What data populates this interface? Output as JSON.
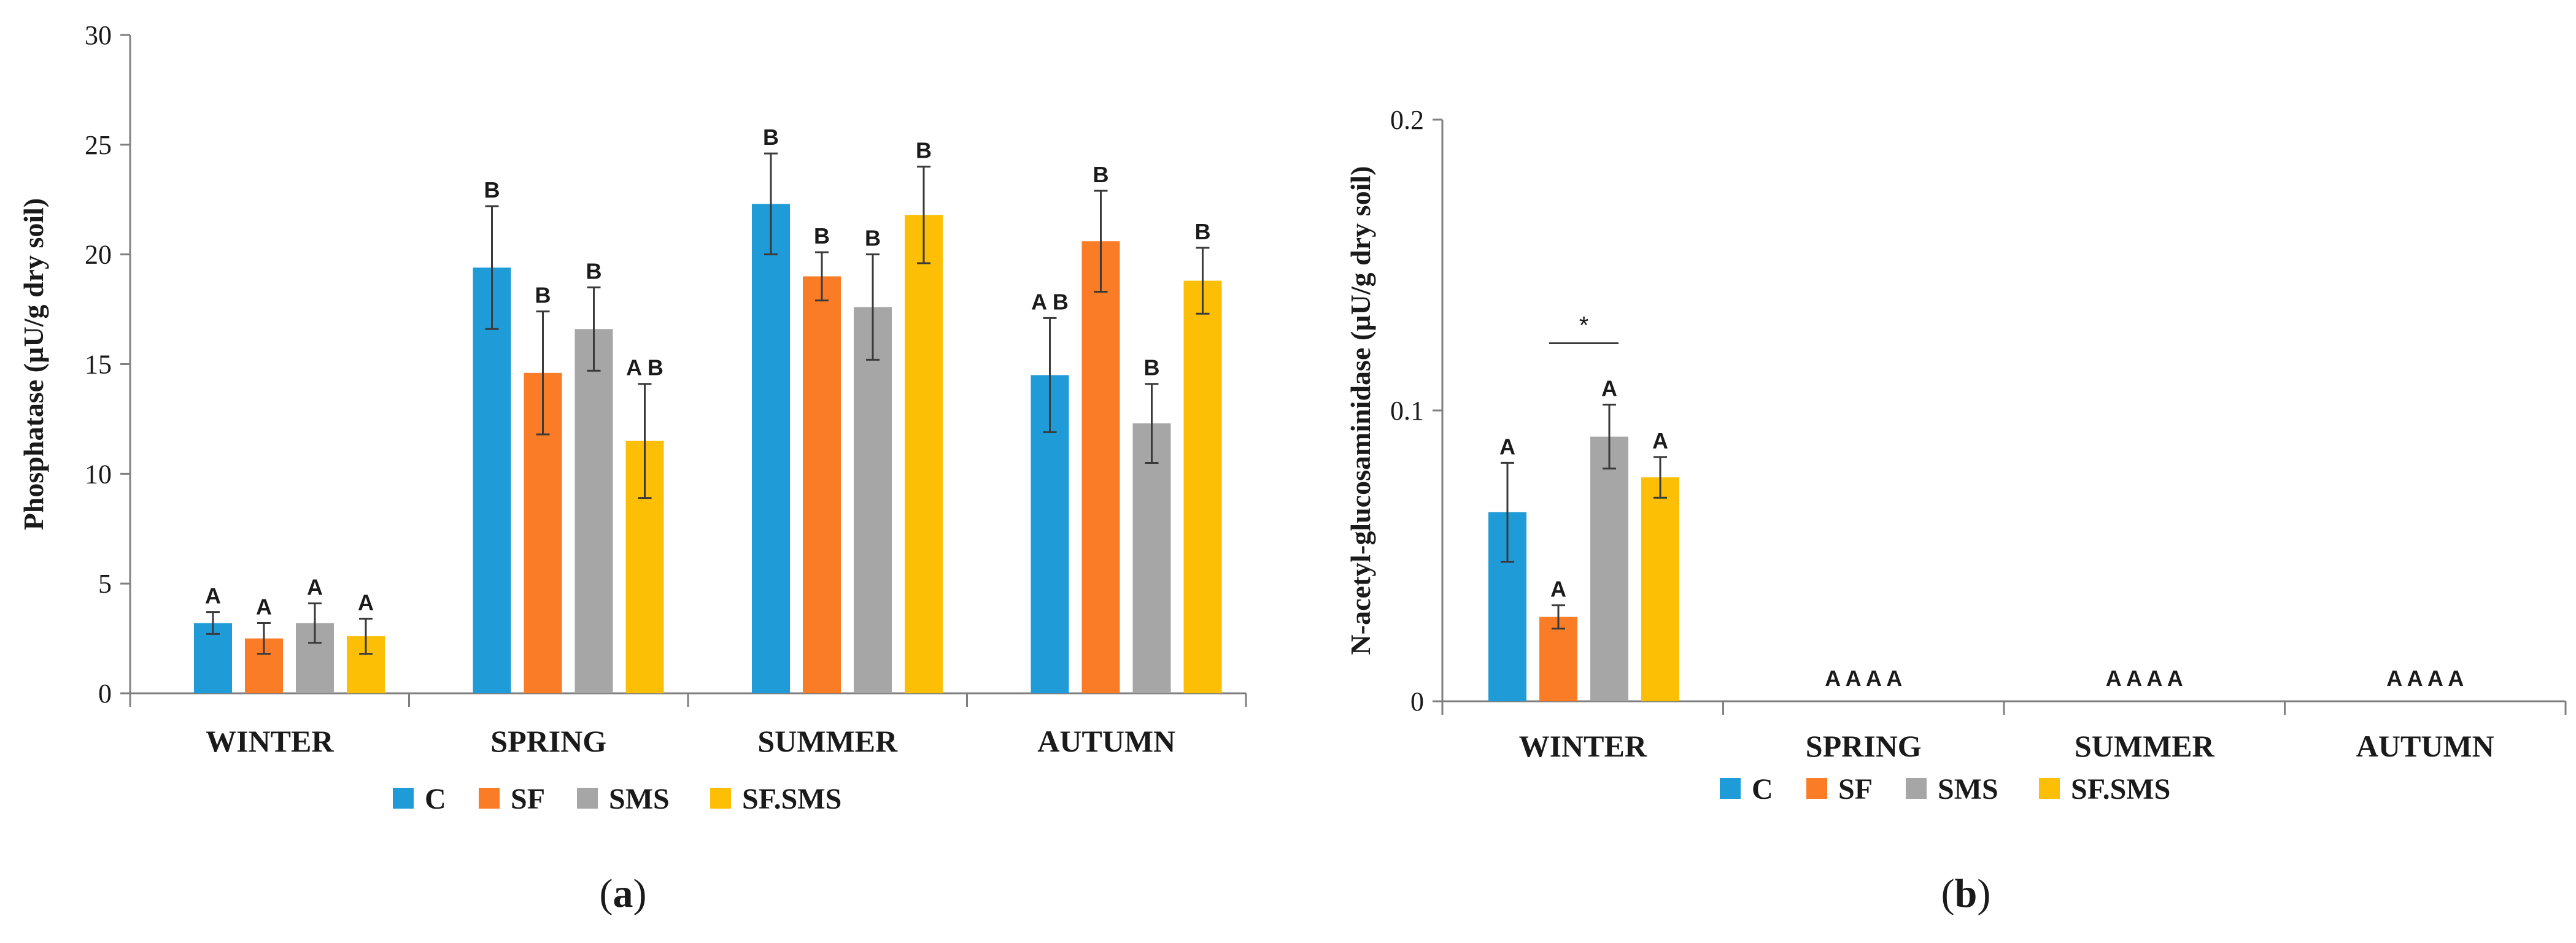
{
  "colors": {
    "C": "#1f9cd8",
    "SF": "#fb7c27",
    "SMS": "#a6a6a6",
    "SF.SMS": "#fcbf05",
    "axis": "#7f7f7f",
    "text": "#1a1a1a"
  },
  "chart_data": [
    {
      "type": "bar",
      "panel_label": "a",
      "panel_open": "(",
      "panel_close": ")",
      "title": "",
      "xlabel": "",
      "ylabel": "Phosphatase (µU/g dry soil)",
      "ylim": [
        0,
        30
      ],
      "yticks": [
        0,
        5,
        10,
        15,
        20,
        25,
        30
      ],
      "ytick_labels": [
        "0",
        "5",
        "10",
        "15",
        "20",
        "25",
        "30"
      ],
      "grid": false,
      "categories": [
        "WINTER",
        "SPRING",
        "SUMMER",
        "AUTUMN"
      ],
      "legend": [
        "C",
        "SF",
        "SMS",
        "SF.SMS"
      ],
      "legend_position": "bottom-center",
      "series": [
        {
          "name": "C",
          "values": [
            3.2,
            19.4,
            22.3,
            14.5
          ],
          "errors": [
            0.5,
            2.8,
            2.3,
            2.6
          ],
          "labels": [
            "A",
            "B",
            "B",
            "A B"
          ]
        },
        {
          "name": "SF",
          "values": [
            2.5,
            14.6,
            19.0,
            20.6
          ],
          "errors": [
            0.7,
            2.8,
            1.1,
            2.3
          ],
          "labels": [
            "A",
            "B",
            "B",
            "B"
          ]
        },
        {
          "name": "SMS",
          "values": [
            3.2,
            16.6,
            17.6,
            12.3
          ],
          "errors": [
            0.9,
            1.9,
            2.4,
            1.8
          ],
          "labels": [
            "A",
            "B",
            "B",
            "B"
          ]
        },
        {
          "name": "SF.SMS",
          "values": [
            2.6,
            11.5,
            21.8,
            18.8
          ],
          "errors": [
            0.8,
            2.6,
            2.2,
            1.5
          ],
          "labels": [
            "A",
            "A B",
            "B",
            "B"
          ]
        }
      ]
    },
    {
      "type": "bar",
      "panel_label": "b",
      "panel_open": "(",
      "panel_close": ")",
      "title": "",
      "xlabel": "",
      "ylabel": "N-acetyl-glucosaminidase (µU/g dry soil)",
      "ylim": [
        0,
        0.2
      ],
      "yticks": [
        0,
        0.1,
        0.2
      ],
      "ytick_labels": [
        "0",
        "0.1",
        "0.2"
      ],
      "grid": false,
      "categories": [
        "WINTER",
        "SPRING",
        "SUMMER",
        "AUTUMN"
      ],
      "legend": [
        "C",
        "SF",
        "SMS",
        "SF.SMS"
      ],
      "legend_position": "bottom-center",
      "series": [
        {
          "name": "C",
          "values": [
            0.065,
            0,
            0,
            0
          ],
          "errors": [
            0.017,
            0,
            0,
            0
          ],
          "labels": [
            "A",
            "",
            "",
            ""
          ]
        },
        {
          "name": "SF",
          "values": [
            0.029,
            0,
            0,
            0
          ],
          "errors": [
            0.004,
            0,
            0,
            0
          ],
          "labels": [
            "A",
            "",
            "",
            ""
          ]
        },
        {
          "name": "SMS",
          "values": [
            0.091,
            0,
            0,
            0
          ],
          "errors": [
            0.011,
            0,
            0,
            0
          ],
          "labels": [
            "A",
            "",
            "",
            ""
          ]
        },
        {
          "name": "SF.SMS",
          "values": [
            0.077,
            0,
            0,
            0
          ],
          "errors": [
            0.007,
            0,
            0,
            0
          ],
          "labels": [
            "A",
            "",
            "",
            ""
          ]
        }
      ],
      "group_labels": [
        "",
        "A A A A",
        "A A A A",
        "A A A A"
      ],
      "significance": {
        "symbol": "*",
        "category": "WINTER",
        "from_series": "SF",
        "to_series": "SMS"
      }
    }
  ]
}
